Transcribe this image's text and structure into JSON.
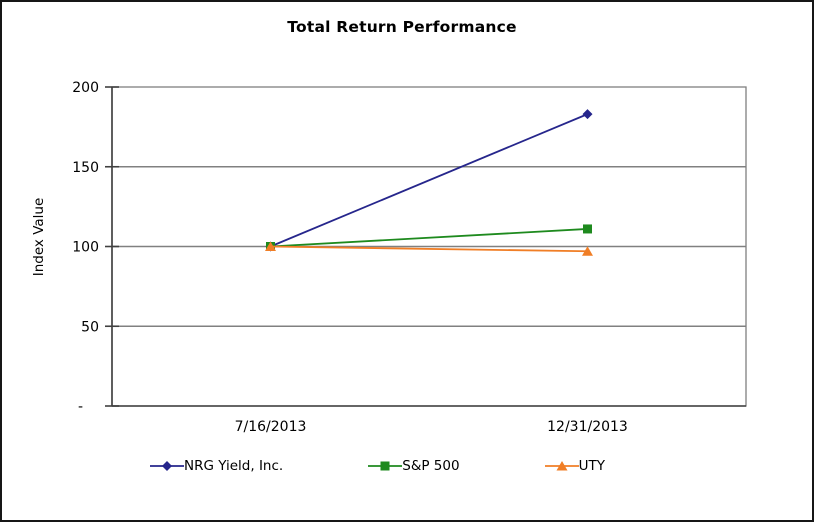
{
  "frame": {
    "background": "#ffffff",
    "border_color": "#161616"
  },
  "chart_data": {
    "type": "line",
    "title": "Total Return Performance",
    "ylabel": "Index Value",
    "xlabel": "",
    "categories": [
      "7/16/2013",
      "12/31/2013"
    ],
    "series": [
      {
        "name": "NRG Yield, Inc.",
        "marker": "diamond",
        "color": "#26268C",
        "values": [
          100,
          183
        ]
      },
      {
        "name": "S&P 500",
        "marker": "square",
        "color": "#1E8A1E",
        "values": [
          100,
          111
        ]
      },
      {
        "name": "UTY",
        "marker": "triangle",
        "color": "#F07E26",
        "values": [
          100,
          97
        ]
      }
    ],
    "ylim": [
      0,
      200
    ],
    "yticks": [
      {
        "value": 0,
        "label": "-"
      },
      {
        "value": 50,
        "label": "50"
      },
      {
        "value": 100,
        "label": "100"
      },
      {
        "value": 150,
        "label": "150"
      },
      {
        "value": 200,
        "label": "200"
      }
    ],
    "grid": "horizontal-only",
    "gridline_color": "#808080",
    "axis_color": "#404040",
    "plot_border_color": "#808080",
    "text_color": "#000000",
    "legend_position": "bottom"
  }
}
